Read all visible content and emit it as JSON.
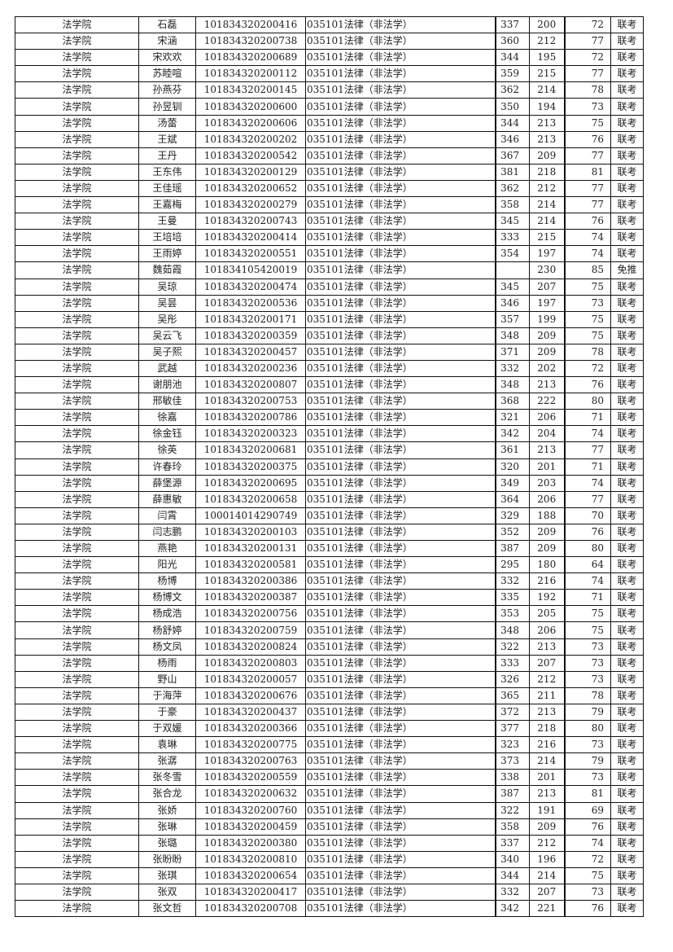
{
  "table": {
    "rows": [
      [
        "法学院",
        "石磊",
        "101834320200416",
        "035101法律（非法学）",
        "337",
        "200",
        "72",
        "联考"
      ],
      [
        "法学院",
        "宋涵",
        "101834320200738",
        "035101法律（非法学）",
        "360",
        "212",
        "77",
        "联考"
      ],
      [
        "法学院",
        "宋欢欢",
        "101834320200689",
        "035101法律（非法学）",
        "344",
        "195",
        "72",
        "联考"
      ],
      [
        "法学院",
        "苏睦喧",
        "101834320200112",
        "035101法律（非法学）",
        "359",
        "215",
        "77",
        "联考"
      ],
      [
        "法学院",
        "孙燕芬",
        "101834320200145",
        "035101法律（非法学）",
        "362",
        "214",
        "78",
        "联考"
      ],
      [
        "法学院",
        "孙昱钏",
        "101834320200600",
        "035101法律（非法学）",
        "350",
        "194",
        "73",
        "联考"
      ],
      [
        "法学院",
        "汤蕾",
        "101834320200606",
        "035101法律（非法学）",
        "344",
        "213",
        "75",
        "联考"
      ],
      [
        "法学院",
        "王斌",
        "101834320200202",
        "035101法律（非法学）",
        "346",
        "213",
        "76",
        "联考"
      ],
      [
        "法学院",
        "王丹",
        "101834320200542",
        "035101法律（非法学）",
        "367",
        "209",
        "77",
        "联考"
      ],
      [
        "法学院",
        "王东伟",
        "101834320200129",
        "035101法律（非法学）",
        "381",
        "218",
        "81",
        "联考"
      ],
      [
        "法学院",
        "王佳瑶",
        "101834320200652",
        "035101法律（非法学）",
        "362",
        "212",
        "77",
        "联考"
      ],
      [
        "法学院",
        "王嘉梅",
        "101834320200279",
        "035101法律（非法学）",
        "358",
        "214",
        "77",
        "联考"
      ],
      [
        "法学院",
        "王曼",
        "101834320200743",
        "035101法律（非法学）",
        "345",
        "214",
        "76",
        "联考"
      ],
      [
        "法学院",
        "王培培",
        "101834320200414",
        "035101法律（非法学）",
        "333",
        "215",
        "74",
        "联考"
      ],
      [
        "法学院",
        "王雨婷",
        "101834320200551",
        "035101法律（非法学）",
        "354",
        "197",
        "74",
        "联考"
      ],
      [
        "法学院",
        "魏茹霞",
        "101834105420019",
        "035101法律（非法学）",
        "",
        "230",
        "85",
        "免推"
      ],
      [
        "法学院",
        "吴琼",
        "101834320200474",
        "035101法律（非法学）",
        "345",
        "207",
        "75",
        "联考"
      ],
      [
        "法学院",
        "吴昙",
        "101834320200536",
        "035101法律（非法学）",
        "346",
        "197",
        "73",
        "联考"
      ],
      [
        "法学院",
        "吴彤",
        "101834320200171",
        "035101法律（非法学）",
        "357",
        "199",
        "75",
        "联考"
      ],
      [
        "法学院",
        "吴云飞",
        "101834320200359",
        "035101法律（非法学）",
        "348",
        "209",
        "75",
        "联考"
      ],
      [
        "法学院",
        "吴子熙",
        "101834320200457",
        "035101法律（非法学）",
        "371",
        "209",
        "78",
        "联考"
      ],
      [
        "法学院",
        "武越",
        "101834320200236",
        "035101法律（非法学）",
        "332",
        "202",
        "72",
        "联考"
      ],
      [
        "法学院",
        "谢朋池",
        "101834320200807",
        "035101法律（非法学）",
        "348",
        "213",
        "76",
        "联考"
      ],
      [
        "法学院",
        "邢敏佳",
        "101834320200753",
        "035101法律（非法学）",
        "368",
        "222",
        "80",
        "联考"
      ],
      [
        "法学院",
        "徐嘉",
        "101834320200786",
        "035101法律（非法学）",
        "321",
        "206",
        "71",
        "联考"
      ],
      [
        "法学院",
        "徐金钰",
        "101834320200323",
        "035101法律（非法学）",
        "342",
        "204",
        "74",
        "联考"
      ],
      [
        "法学院",
        "徐英",
        "101834320200681",
        "035101法律（非法学）",
        "361",
        "213",
        "77",
        "联考"
      ],
      [
        "法学院",
        "许春玲",
        "101834320200375",
        "035101法律（非法学）",
        "320",
        "201",
        "71",
        "联考"
      ],
      [
        "法学院",
        "薛堡源",
        "101834320200695",
        "035101法律（非法学）",
        "349",
        "203",
        "74",
        "联考"
      ],
      [
        "法学院",
        "薛惠敏",
        "101834320200658",
        "035101法律（非法学）",
        "364",
        "206",
        "77",
        "联考"
      ],
      [
        "法学院",
        "闫霄",
        "100014014290749",
        "035101法律（非法学）",
        "329",
        "188",
        "70",
        "联考"
      ],
      [
        "法学院",
        "闫志鹏",
        "101834320200103",
        "035101法律（非法学）",
        "352",
        "209",
        "76",
        "联考"
      ],
      [
        "法学院",
        "燕艳",
        "101834320200131",
        "035101法律（非法学）",
        "387",
        "209",
        "80",
        "联考"
      ],
      [
        "法学院",
        "阳光",
        "101834320200581",
        "035101法律（非法学）",
        "295",
        "180",
        "64",
        "联考"
      ],
      [
        "法学院",
        "杨博",
        "101834320200386",
        "035101法律（非法学）",
        "332",
        "216",
        "74",
        "联考"
      ],
      [
        "法学院",
        "杨博文",
        "101834320200387",
        "035101法律（非法学）",
        "335",
        "192",
        "71",
        "联考"
      ],
      [
        "法学院",
        "杨成浩",
        "101834320200756",
        "035101法律（非法学）",
        "353",
        "205",
        "75",
        "联考"
      ],
      [
        "法学院",
        "杨舒婷",
        "101834320200759",
        "035101法律（非法学）",
        "348",
        "206",
        "75",
        "联考"
      ],
      [
        "法学院",
        "杨文凤",
        "101834320200824",
        "035101法律（非法学）",
        "322",
        "213",
        "73",
        "联考"
      ],
      [
        "法学院",
        "杨雨",
        "101834320200803",
        "035101法律（非法学）",
        "333",
        "207",
        "73",
        "联考"
      ],
      [
        "法学院",
        "野山",
        "101834320200057",
        "035101法律（非法学）",
        "326",
        "212",
        "73",
        "联考"
      ],
      [
        "法学院",
        "于海萍",
        "101834320200676",
        "035101法律（非法学）",
        "365",
        "211",
        "78",
        "联考"
      ],
      [
        "法学院",
        "于豪",
        "101834320200437",
        "035101法律（非法学）",
        "372",
        "213",
        "79",
        "联考"
      ],
      [
        "法学院",
        "于双媛",
        "101834320200366",
        "035101法律（非法学）",
        "377",
        "218",
        "80",
        "联考"
      ],
      [
        "法学院",
        "袁琳",
        "101834320200775",
        "035101法律（非法学）",
        "323",
        "216",
        "73",
        "联考"
      ],
      [
        "法学院",
        "张潺",
        "101834320200763",
        "035101法律（非法学）",
        "373",
        "214",
        "79",
        "联考"
      ],
      [
        "法学院",
        "张冬雪",
        "101834320200559",
        "035101法律（非法学）",
        "338",
        "201",
        "73",
        "联考"
      ],
      [
        "法学院",
        "张合龙",
        "101834320200632",
        "035101法律（非法学）",
        "387",
        "213",
        "81",
        "联考"
      ],
      [
        "法学院",
        "张娇",
        "101834320200760",
        "035101法律（非法学）",
        "322",
        "191",
        "69",
        "联考"
      ],
      [
        "法学院",
        "张琳",
        "101834320200459",
        "035101法律（非法学）",
        "358",
        "209",
        "76",
        "联考"
      ],
      [
        "法学院",
        "张璐",
        "101834320200380",
        "035101法律（非法学）",
        "337",
        "212",
        "74",
        "联考"
      ],
      [
        "法学院",
        "张盼盼",
        "101834320200810",
        "035101法律（非法学）",
        "340",
        "196",
        "72",
        "联考"
      ],
      [
        "法学院",
        "张琪",
        "101834320200654",
        "035101法律（非法学）",
        "344",
        "214",
        "75",
        "联考"
      ],
      [
        "法学院",
        "张双",
        "101834320200417",
        "035101法律（非法学）",
        "332",
        "207",
        "73",
        "联考"
      ],
      [
        "法学院",
        "张文哲",
        "101834320200708",
        "035101法律（非法学）",
        "342",
        "221",
        "76",
        "联考"
      ]
    ]
  }
}
